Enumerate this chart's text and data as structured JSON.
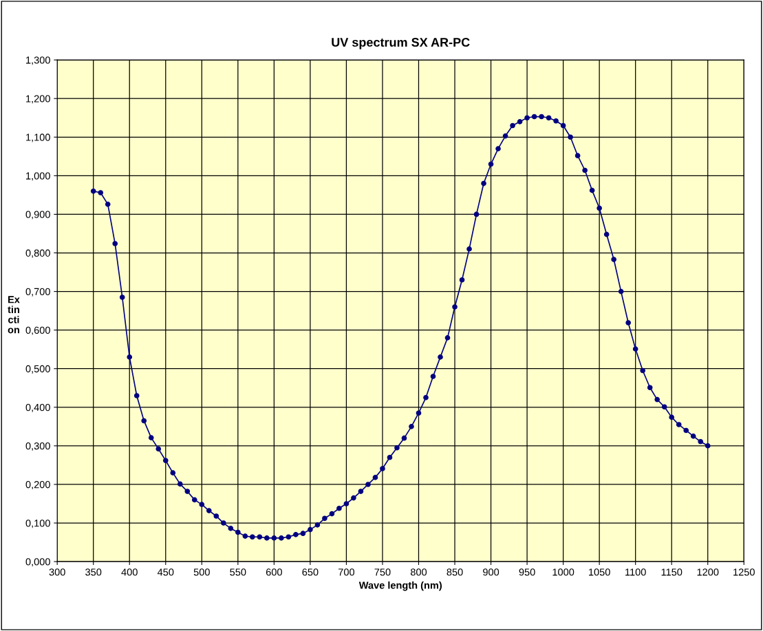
{
  "chart_data": {
    "type": "line",
    "title": "UV spectrum SX AR-PC",
    "xlabel": "Wave length (nm)",
    "ylabel": "Ex\ntin\ncti\non",
    "x": [
      350,
      360,
      370,
      380,
      390,
      400,
      410,
      420,
      430,
      440,
      450,
      460,
      470,
      480,
      490,
      500,
      510,
      520,
      530,
      540,
      550,
      560,
      570,
      580,
      590,
      600,
      610,
      620,
      630,
      640,
      650,
      660,
      670,
      680,
      690,
      700,
      710,
      720,
      730,
      740,
      750,
      760,
      770,
      780,
      790,
      800,
      810,
      820,
      830,
      840,
      850,
      860,
      870,
      880,
      890,
      900,
      910,
      920,
      930,
      940,
      950,
      960,
      970,
      980,
      990,
      1000,
      1010,
      1020,
      1030,
      1040,
      1050,
      1060,
      1070,
      1080,
      1090,
      1100,
      1110,
      1120,
      1130,
      1140,
      1150,
      1160,
      1170,
      1180,
      1190,
      1200
    ],
    "series": [
      {
        "color": "#000080",
        "values": [
          0.96,
          0.956,
          0.926,
          0.824,
          0.685,
          0.53,
          0.43,
          0.365,
          0.321,
          0.292,
          0.262,
          0.23,
          0.201,
          0.182,
          0.16,
          0.148,
          0.132,
          0.118,
          0.1,
          0.086,
          0.076,
          0.066,
          0.064,
          0.064,
          0.061,
          0.061,
          0.061,
          0.064,
          0.07,
          0.073,
          0.083,
          0.095,
          0.112,
          0.124,
          0.138,
          0.15,
          0.165,
          0.182,
          0.2,
          0.218,
          0.241,
          0.27,
          0.295,
          0.32,
          0.35,
          0.385,
          0.425,
          0.48,
          0.53,
          0.58,
          0.66,
          0.73,
          0.81,
          0.9,
          0.98,
          1.03,
          1.07,
          1.103,
          1.13,
          1.14,
          1.15,
          1.153,
          1.153,
          1.15,
          1.142,
          1.13,
          1.1,
          1.052,
          1.014,
          0.962,
          0.916,
          0.848,
          0.783,
          0.7,
          0.619,
          0.551,
          0.495,
          0.451,
          0.42,
          0.401,
          0.374,
          0.355,
          0.34,
          0.325,
          0.311,
          0.3
        ]
      }
    ],
    "xlim": [
      300,
      1250
    ],
    "xticks": [
      300,
      350,
      400,
      450,
      500,
      550,
      600,
      650,
      700,
      750,
      800,
      850,
      900,
      950,
      1000,
      1050,
      1100,
      1150,
      1200,
      1250
    ],
    "ylim": [
      0,
      1.3
    ],
    "yticks": [
      {
        "value": 0,
        "label": "0,000"
      },
      {
        "value": 0.1,
        "label": "0,100"
      },
      {
        "value": 0.2,
        "label": "0,200"
      },
      {
        "value": 0.3,
        "label": "0,300"
      },
      {
        "value": 0.4,
        "label": "0,400"
      },
      {
        "value": 0.5,
        "label": "0,500"
      },
      {
        "value": 0.6,
        "label": "0,600"
      },
      {
        "value": 0.7,
        "label": "0,700"
      },
      {
        "value": 0.8,
        "label": "0,800"
      },
      {
        "value": 0.9,
        "label": "0,900"
      },
      {
        "value": 1.0,
        "label": "1,000"
      },
      {
        "value": 1.1,
        "label": "1,100"
      },
      {
        "value": 1.2,
        "label": "1,200"
      },
      {
        "value": 1.3,
        "label": "1,300"
      }
    ],
    "grid": true,
    "marker": "circle",
    "line_style": "solid"
  }
}
